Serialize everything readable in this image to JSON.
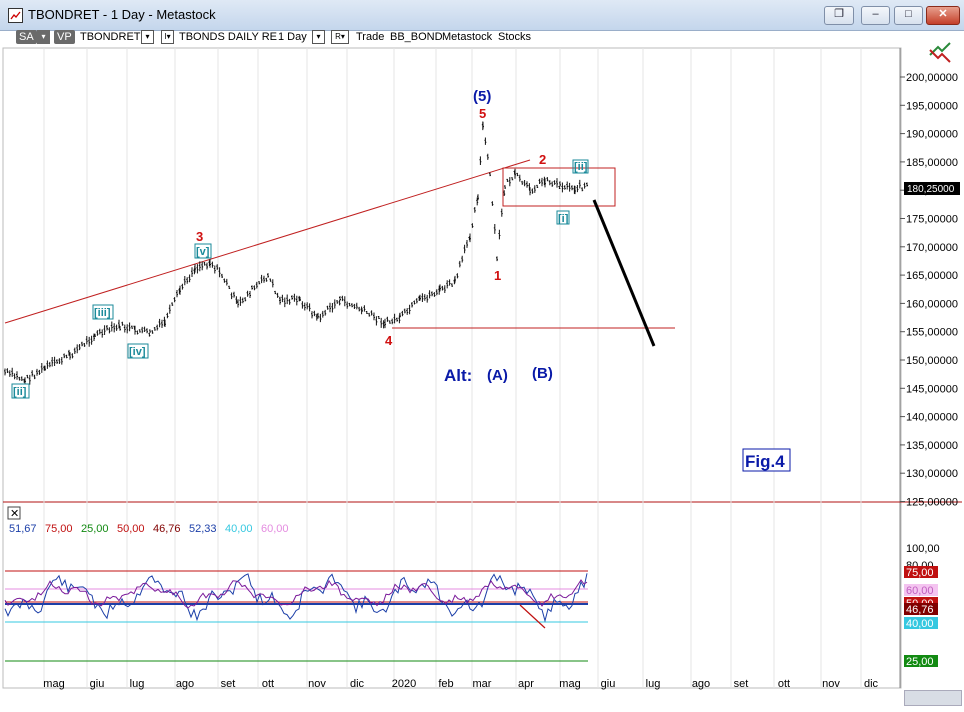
{
  "window": {
    "title": "TBONDRET - 1 Day - Metastock"
  },
  "toolbar": {
    "sa_label": "SA",
    "vp_label": "VP",
    "symbol": "TBONDRET",
    "series_name": "TBONDS DAILY RE",
    "interval": "1 Day",
    "r_label": "R",
    "trade_label": "Trade",
    "security": "BB_BOND",
    "source": "Metastock",
    "type": "Stocks"
  },
  "price_panel": {
    "y_ticks": [
      "200,00000",
      "195,00000",
      "190,00000",
      "185,00000",
      "180,00000",
      "175,00000",
      "170,00000",
      "165,00000",
      "160,00000",
      "155,00000",
      "150,00000",
      "145,00000",
      "140,00000",
      "135,00000",
      "130,00000",
      "125,00000"
    ],
    "last_price": "180,25000",
    "wave_labels": {
      "w5_blue": "(5)",
      "w5_red": "5",
      "w2": "2",
      "w3": "3",
      "w1": "1",
      "w4": "4",
      "ii_top": "[ii]",
      "i": "[i]",
      "v": "[v]",
      "iii": "[iii]",
      "iv": "[iv]",
      "ii_bottom": "[ii]"
    },
    "alt_label": "Alt:",
    "alt_a": "(A)",
    "alt_b": "(B)",
    "fig_label": "Fig.4",
    "colors": {
      "wave_red": "#d01010",
      "wave_blue": "#0a1aa8",
      "wave_teal": "#1a8a9a",
      "resistance": "#c02020"
    }
  },
  "indicator_panel": {
    "legend": [
      {
        "text": "51,67",
        "color": "#1c3fa8"
      },
      {
        "text": "75,00",
        "color": "#c01010"
      },
      {
        "text": "25,00",
        "color": "#128a12"
      },
      {
        "text": "50,00",
        "color": "#c01010"
      },
      {
        "text": "46,76",
        "color": "#800000"
      },
      {
        "text": "52,33",
        "color": "#1c3fa8"
      },
      {
        "text": "40,00",
        "color": "#36c8e0"
      },
      {
        "text": "60,00",
        "color": "#e48ce0"
      }
    ],
    "y_ticks": [
      "100,00",
      "80,00",
      "75,00",
      "60,00",
      "50,00",
      "46,76",
      "40,00",
      "25,00"
    ],
    "levels": {
      "upper": 75,
      "mid": 50,
      "lower": 25,
      "band_high": 60,
      "band_low": 40
    }
  },
  "x_axis": [
    "mag",
    "giu",
    "lug",
    "ago",
    "set",
    "ott",
    "nov",
    "dic",
    "2020",
    "feb",
    "mar",
    "apr",
    "mag",
    "giu",
    "lug",
    "ago",
    "set",
    "ott",
    "nov",
    "dic"
  ]
}
